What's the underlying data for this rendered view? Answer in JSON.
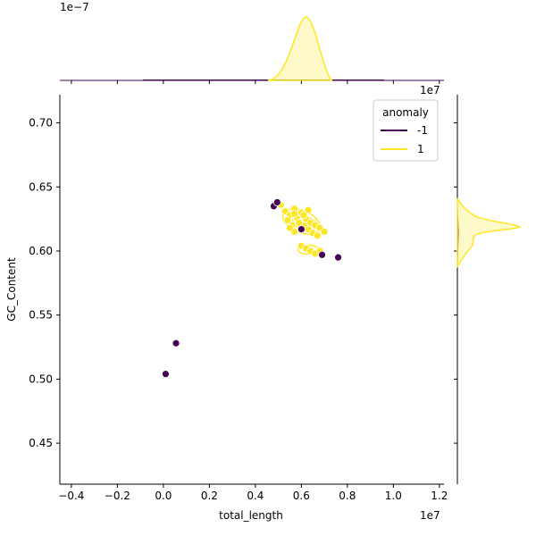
{
  "chart_data": {
    "type": "scatter",
    "xlabel": "total_length",
    "ylabel": "GC_Content",
    "x_offset_label": "1e7",
    "y_offset_label": "1e7",
    "marginal_top_offset_label": "1e−7",
    "xlim": [
      -0.45,
      1.22
    ],
    "ylim": [
      0.418,
      0.722
    ],
    "x_ticks": [
      "−0.4",
      "−0.2",
      "0.0",
      "0.2",
      "0.4",
      "0.6",
      "0.8",
      "1.0",
      "1.2"
    ],
    "y_ticks": [
      "0.45",
      "0.50",
      "0.55",
      "0.60",
      "0.65",
      "0.70"
    ],
    "legend": {
      "title": "anomaly",
      "entries": [
        {
          "label": "-1",
          "color": "#440154"
        },
        {
          "label": "1",
          "color": "#fde725"
        }
      ]
    },
    "series": [
      {
        "name": "-1",
        "color": "#440154",
        "points": [
          [
            0.01,
            0.504
          ],
          [
            0.055,
            0.528
          ],
          [
            0.48,
            0.635
          ],
          [
            0.495,
            0.638
          ],
          [
            0.6,
            0.617
          ],
          [
            0.69,
            0.597
          ],
          [
            0.76,
            0.595
          ]
        ]
      },
      {
        "name": "1",
        "color": "#fde725",
        "points": [
          [
            0.51,
            0.636
          ],
          [
            0.53,
            0.631
          ],
          [
            0.55,
            0.628
          ],
          [
            0.57,
            0.633
          ],
          [
            0.54,
            0.624
          ],
          [
            0.56,
            0.62
          ],
          [
            0.58,
            0.626
          ],
          [
            0.6,
            0.63
          ],
          [
            0.62,
            0.625
          ],
          [
            0.61,
            0.62
          ],
          [
            0.64,
            0.622
          ],
          [
            0.66,
            0.62
          ],
          [
            0.68,
            0.618
          ],
          [
            0.7,
            0.615
          ],
          [
            0.63,
            0.617
          ],
          [
            0.65,
            0.614
          ],
          [
            0.67,
            0.612
          ],
          [
            0.59,
            0.622
          ],
          [
            0.57,
            0.615
          ],
          [
            0.55,
            0.618
          ],
          [
            0.6,
            0.604
          ],
          [
            0.62,
            0.602
          ],
          [
            0.64,
            0.6
          ],
          [
            0.66,
            0.598
          ],
          [
            0.68,
            0.6
          ],
          [
            0.57,
            0.629
          ],
          [
            0.61,
            0.628
          ],
          [
            0.63,
            0.632
          ]
        ]
      }
    ]
  }
}
